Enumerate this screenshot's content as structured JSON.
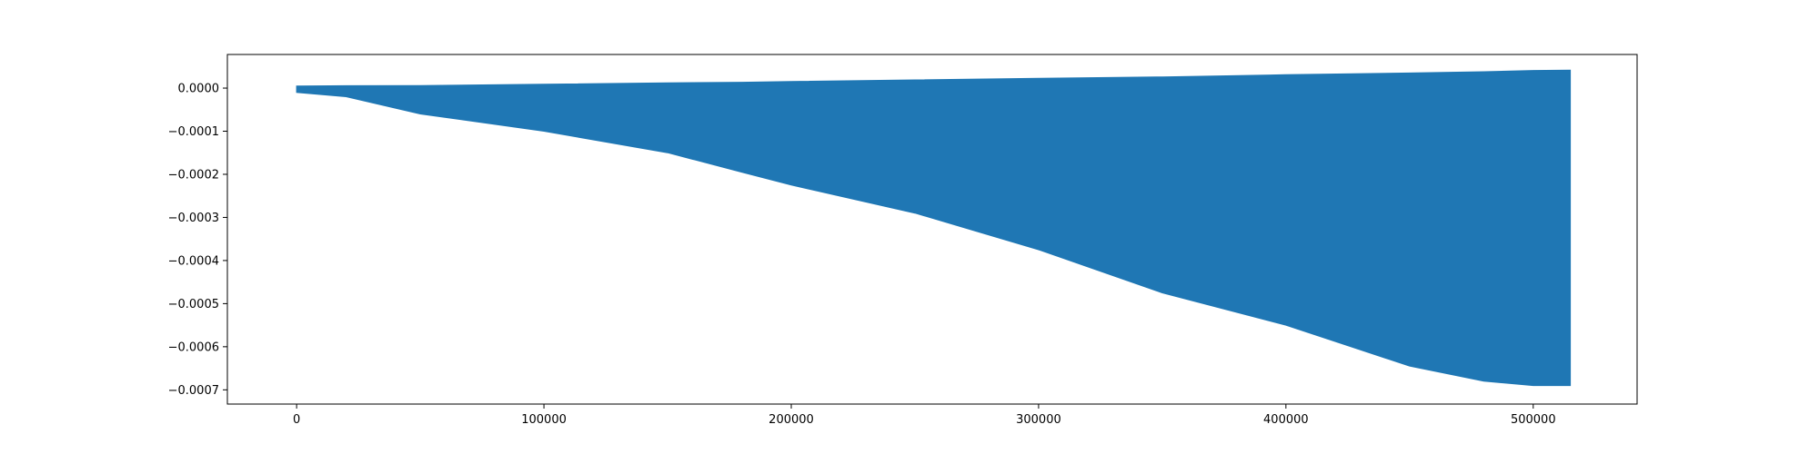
{
  "chart_data": {
    "type": "area",
    "title": "",
    "xlabel": "",
    "ylabel": "",
    "xlim": [
      -28000,
      542000
    ],
    "ylim": [
      -0.000733,
      7.8e-05
    ],
    "grid": false,
    "legend": null,
    "color": "#1f77b4",
    "x_ticks": [
      {
        "value": 0,
        "label": "0"
      },
      {
        "value": 100000,
        "label": "100000"
      },
      {
        "value": 200000,
        "label": "200000"
      },
      {
        "value": 300000,
        "label": "300000"
      },
      {
        "value": 400000,
        "label": "400000"
      },
      {
        "value": 500000,
        "label": "500000"
      }
    ],
    "y_ticks": [
      {
        "value": 0.0,
        "label": "0.0000"
      },
      {
        "value": -0.0001,
        "label": "−0.0001"
      },
      {
        "value": -0.0002,
        "label": "−0.0002"
      },
      {
        "value": -0.0003,
        "label": "−0.0003"
      },
      {
        "value": -0.0004,
        "label": "−0.0004"
      },
      {
        "value": -0.0005,
        "label": "−0.0005"
      },
      {
        "value": -0.0006,
        "label": "−0.0006"
      },
      {
        "value": -0.0007,
        "label": "−0.0007"
      }
    ],
    "series": [
      {
        "x": [
          0,
          20000,
          50000,
          100000,
          150000,
          180000,
          200000,
          250000,
          300000,
          350000,
          400000,
          450000,
          480000,
          500000,
          515000
        ],
        "upper": [
          5e-06,
          5.5e-06,
          6e-06,
          9e-06,
          1.2e-05,
          1.35e-05,
          1.55e-05,
          1.9e-05,
          2.25e-05,
          2.6e-05,
          3.1e-05,
          3.5e-05,
          3.8e-05,
          4.1e-05,
          4.15e-05
        ],
        "lower": [
          -1e-05,
          -2e-05,
          -6e-05,
          -0.0001,
          -0.00015,
          -0.000195,
          -0.000225,
          -0.00029,
          -0.000375,
          -0.000475,
          -0.00055,
          -0.000645,
          -0.00068,
          -0.00069,
          -0.00069
        ]
      }
    ]
  }
}
